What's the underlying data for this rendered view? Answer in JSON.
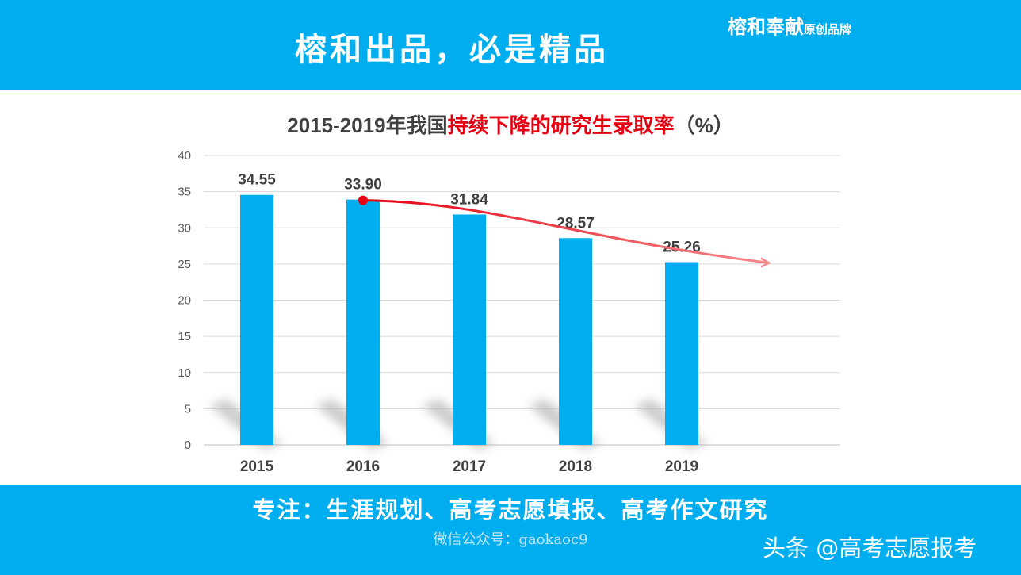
{
  "header": {
    "headline": "榕和出品，必是精品",
    "brand_name": "榕和奉献",
    "brand_tag": "原创品牌"
  },
  "chart_data": {
    "type": "bar",
    "title": {
      "prefix": "2015-2019年我国",
      "highlight": "持续下降的研究生录取率",
      "suffix": "（%）"
    },
    "categories": [
      "2015",
      "2016",
      "2017",
      "2018",
      "2019"
    ],
    "values": [
      34.55,
      33.9,
      31.84,
      28.57,
      25.26
    ],
    "value_labels": [
      "34.55",
      "33.90",
      "31.84",
      "28.57",
      "25.26"
    ],
    "ylim": [
      0,
      40
    ],
    "yticks": [
      "0",
      "5",
      "10",
      "15",
      "20",
      "25",
      "30",
      "35",
      "40"
    ],
    "grid": true,
    "trend_arrow": {
      "from_category": "2016",
      "from_value": 33.9,
      "to_value": 25.26
    },
    "colors": {
      "bar": "#00aeef",
      "trend": "#e60012",
      "title_highlight": "#e60012"
    }
  },
  "footer": {
    "slogan": "专注：生涯规划、高考志愿填报、高考作文研究",
    "wechat": "微信公众号：gaokaoc9",
    "watermark": "头条 @高考志愿报考"
  },
  "colors": {
    "band": "#00aeef"
  }
}
